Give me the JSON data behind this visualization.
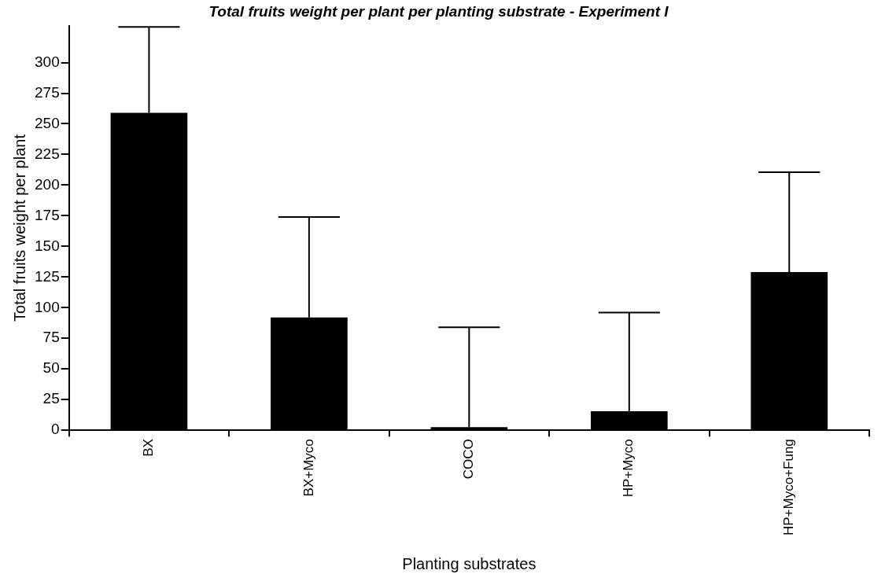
{
  "chart_data": {
    "type": "bar",
    "title": "Total fruits weight per plant per planting substrate - Experiment I",
    "xlabel": "Planting substrates",
    "ylabel": "Total fruits weight per plant",
    "categories": [
      "BX",
      "BX+Myco",
      "COCO",
      "HP+Myco",
      "HP+Myco+Fung"
    ],
    "values": [
      259,
      92,
      2.5,
      15.5,
      129
    ],
    "errors": [
      [
        259,
        329
      ],
      [
        92,
        174
      ],
      [
        2.5,
        84
      ],
      [
        15.5,
        96
      ],
      [
        129,
        210.5
      ]
    ],
    "color": "#000000",
    "ylim": [
      0,
      330
    ],
    "yticks": [
      0,
      25,
      50,
      75,
      100,
      125,
      150,
      175,
      200,
      225,
      250,
      275,
      300
    ],
    "grid": false,
    "legend": false
  }
}
